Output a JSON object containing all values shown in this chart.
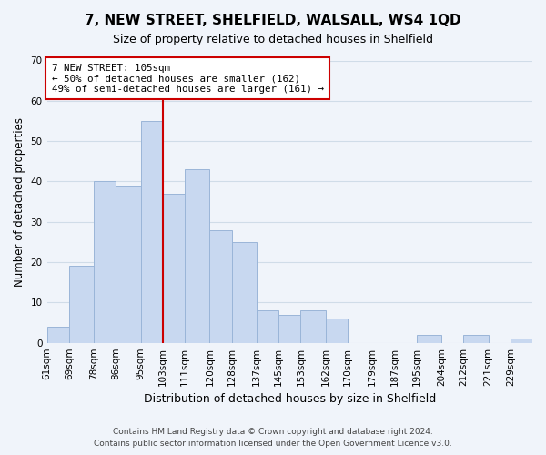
{
  "title": "7, NEW STREET, SHELFIELD, WALSALL, WS4 1QD",
  "subtitle": "Size of property relative to detached houses in Shelfield",
  "xlabel": "Distribution of detached houses by size in Shelfield",
  "ylabel": "Number of detached properties",
  "footer_line1": "Contains HM Land Registry data © Crown copyright and database right 2024.",
  "footer_line2": "Contains public sector information licensed under the Open Government Licence v3.0.",
  "bin_labels": [
    "61sqm",
    "69sqm",
    "78sqm",
    "86sqm",
    "95sqm",
    "103sqm",
    "111sqm",
    "120sqm",
    "128sqm",
    "137sqm",
    "145sqm",
    "153sqm",
    "162sqm",
    "170sqm",
    "179sqm",
    "187sqm",
    "195sqm",
    "204sqm",
    "212sqm",
    "221sqm",
    "229sqm"
  ],
  "bin_edges": [
    61,
    69,
    78,
    86,
    95,
    103,
    111,
    120,
    128,
    137,
    145,
    153,
    162,
    170,
    179,
    187,
    195,
    204,
    212,
    221,
    229
  ],
  "bar_heights": [
    4,
    19,
    40,
    39,
    55,
    37,
    43,
    28,
    25,
    8,
    7,
    8,
    6,
    0,
    0,
    0,
    2,
    0,
    2,
    0,
    1
  ],
  "bar_color": "#c8d8f0",
  "bar_edgecolor": "#9ab5d8",
  "vline_x": 103,
  "vline_color": "#cc0000",
  "ylim": [
    0,
    70
  ],
  "yticks": [
    0,
    10,
    20,
    30,
    40,
    50,
    60,
    70
  ],
  "annotation_title": "7 NEW STREET: 105sqm",
  "annotation_line1": "← 50% of detached houses are smaller (162)",
  "annotation_line2": "49% of semi-detached houses are larger (161) →",
  "grid_color": "#d0dce8",
  "background_color": "#f0f4fa",
  "title_fontsize": 11,
  "subtitle_fontsize": 9
}
